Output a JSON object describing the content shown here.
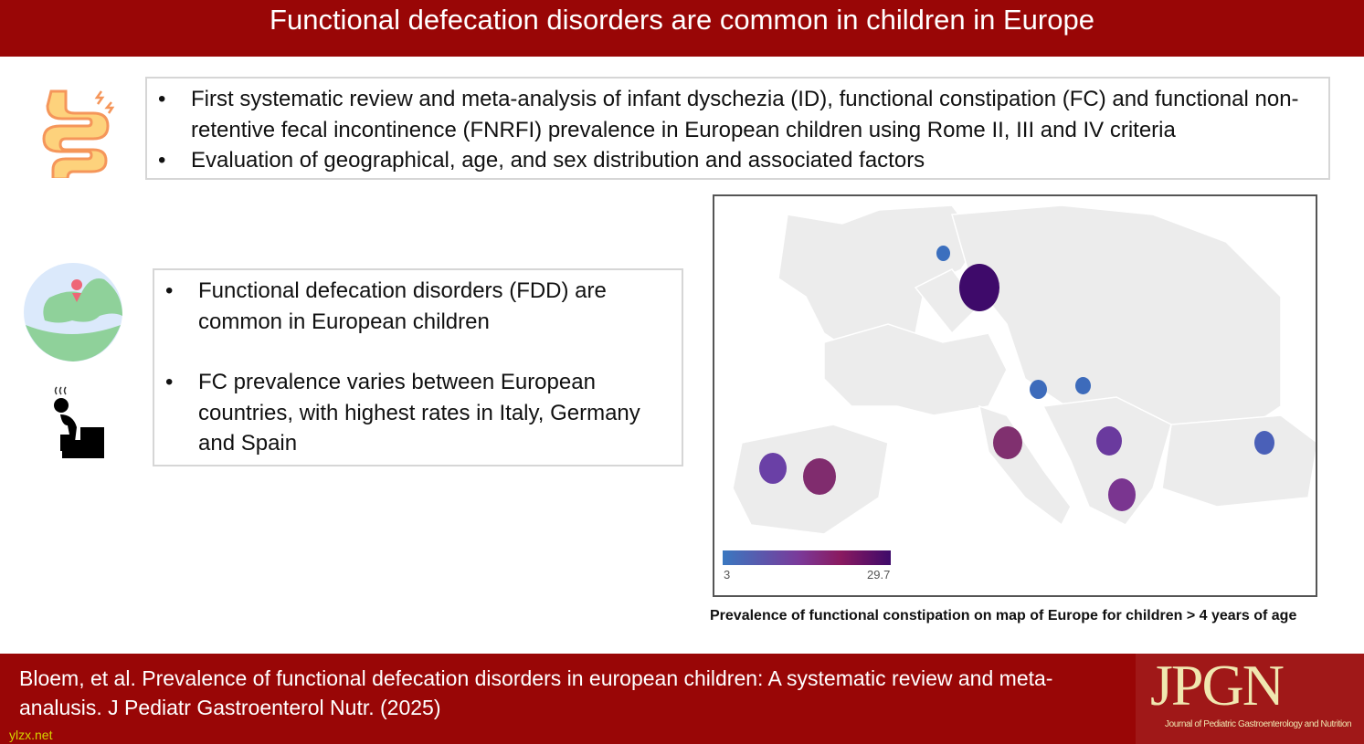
{
  "title": "Functional defecation disorders are common in children in Europe",
  "box1": {
    "bullets": [
      "First systematic review and meta-analysis of infant dyschezia (ID), functional constipation (FC) and functional non-retentive fecal incontinence (FNRFI) prevalence in European children using Rome II, III and IV criteria",
      "Evaluation of geographical, age, and sex distribution and associated factors"
    ]
  },
  "box2": {
    "bullets": [
      "Functional defecation disorders (FDD) are common in European children",
      "FC prevalence varies between European countries, with highest rates in Italy, Germany and Spain"
    ]
  },
  "icons": [
    "intestine-icon",
    "europe-globe-icon",
    "toilet-person-icon"
  ],
  "map": {
    "colorbar": {
      "min": "3",
      "max": "29.7",
      "colors": [
        "#3a78c0",
        "#7a3a9a",
        "#8a1a60",
        "#3e0a6a"
      ]
    },
    "caption": "Prevalence of functional constipation on map of Europe for children > 4 years of age",
    "markers": [
      {
        "country": "netherlands",
        "color": "#3b6fbe"
      },
      {
        "country": "germany",
        "color": "#3e0a6a"
      },
      {
        "country": "croatia",
        "color": "#3d6bbb"
      },
      {
        "country": "serbia",
        "color": "#3d6bbb"
      },
      {
        "country": "italy",
        "color": "#80306f"
      },
      {
        "country": "north-macedonia",
        "color": "#6a3a9e"
      },
      {
        "country": "greece",
        "color": "#7a3590"
      },
      {
        "country": "turkey",
        "color": "#4a60b8"
      },
      {
        "country": "portugal",
        "color": "#6a40a6"
      },
      {
        "country": "spain",
        "color": "#802c6e"
      }
    ]
  },
  "footer": {
    "citation": "Bloem, et al. Prevalence of functional defecation disorders in european children: A systematic review and meta-analusis. J Pediatr Gastroenterol Nutr. (2025)",
    "logo": "JPGN",
    "logo_sub": "Journal of Pediatric Gastroenterology and Nutrition",
    "watermark": "ylzx.net"
  }
}
